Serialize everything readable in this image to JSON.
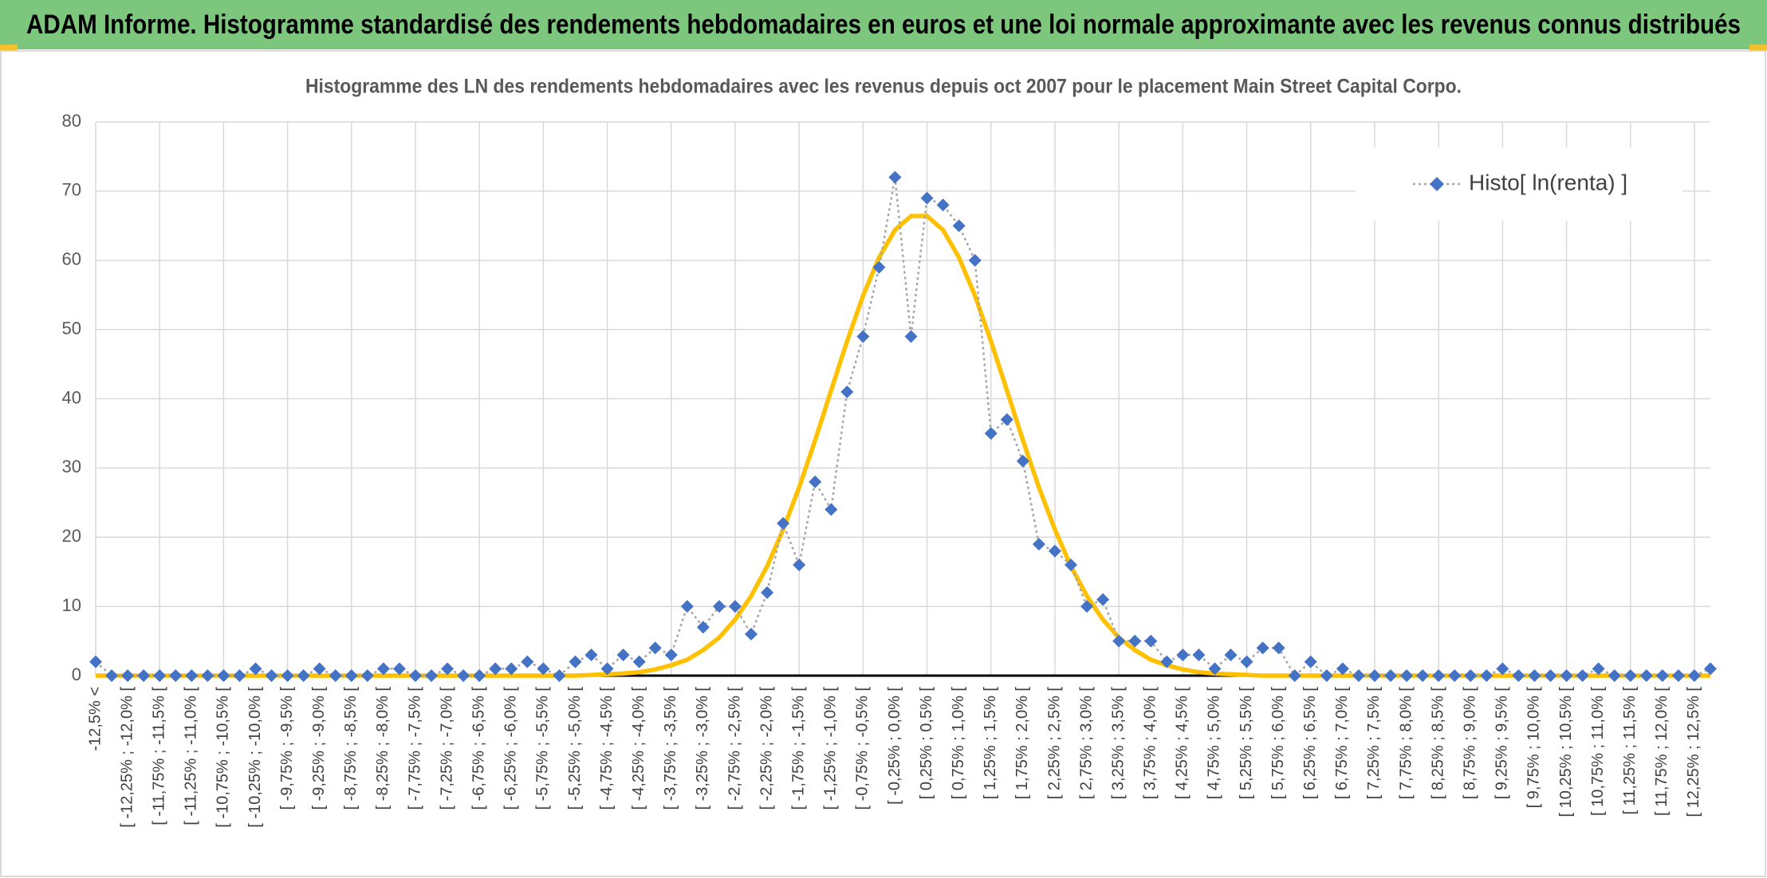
{
  "header": {
    "title": "ADAM Informe. Histogramme standardisé des rendements hebdomadaires en euros et une loi normale approximante avec les revenus connus distribués"
  },
  "chart_data": {
    "type": "line",
    "title": "Histogramme des LN des rendements hebdomadaires avec les revenus depuis oct 2007 pour le placement Main Street Capital Corpo.",
    "categories": [
      "-12,5% <",
      null,
      "[ -12,25% ; -12,0% [",
      null,
      "[ -11,75% ; -11,5% [",
      null,
      "[ -11,25% ; -11,0% [",
      null,
      "[ -10,75% ; -10,5% [",
      null,
      "[ -10,25% ; -10,0% [",
      null,
      "[ -9,75% ; -9,5% [",
      null,
      "[ -9,25% ; -9,0% [",
      null,
      "[ -8,75% ; -8,5% [",
      null,
      "[ -8,25% ; -8,0% [",
      null,
      "[ -7,75% ; -7,5% [",
      null,
      "[ -7,25% ; -7,0% [",
      null,
      "[ -6,75% ; -6,5% [",
      null,
      "[ -6,25% ; -6,0% [",
      null,
      "[ -5,75% ; -5,5% [",
      null,
      "[ -5,25% ; -5,0% [",
      null,
      "[ -4,75% ; -4,5% [",
      null,
      "[ -4,25% ; -4,0% [",
      null,
      "[ -3,75% ; -3,5% [",
      null,
      "[ -3,25% ; -3,0% [",
      null,
      "[ -2,75% ; -2,5% [",
      null,
      "[ -2,25% ; -2,0% [",
      null,
      "[ -1,75% ; -1,5% [",
      null,
      "[ -1,25% ; -1,0% [",
      null,
      "[ -0,75% ; -0,5% [",
      null,
      "[ -0,25% ; 0,0% [",
      null,
      "[ 0,25% ; 0,5% [",
      null,
      "[ 0,75% ; 1,0% [",
      null,
      "[ 1,25% ; 1,5% [",
      null,
      "[ 1,75% ; 2,0% [",
      null,
      "[ 2,25% ; 2,5% [",
      null,
      "[ 2,75% ; 3,0% [",
      null,
      "[ 3,25% ; 3,5% [",
      null,
      "[ 3,75% ; 4,0% [",
      null,
      "[ 4,25% ; 4,5% [",
      null,
      "[ 4,75% ; 5,0% [",
      null,
      "[ 5,25% ; 5,5% [",
      null,
      "[ 5,75% ; 6,0% [",
      null,
      "[ 6,25% ; 6,5% [",
      null,
      "[ 6,75% ; 7,0% [",
      null,
      "[ 7,25% ; 7,5% [",
      null,
      "[ 7,75% ; 8,0% [",
      null,
      "[ 8,25% ; 8,5% [",
      null,
      "[ 8,75% ; 9,0% [",
      null,
      "[ 9,25% ; 9,5% [",
      null,
      "[ 9,75% ; 10,0% [",
      null,
      "[ 10,25% ; 10,5% [",
      null,
      "[ 10,75% ; 11,0% [",
      null,
      "[ 11,25% ; 11,5% [",
      null,
      "[ 11,75% ; 12,0% [",
      null,
      "[ 12,25% ; 12,5% [",
      null
    ],
    "series": [
      {
        "name": "Histo[ ln(renta) ]",
        "color": "#4472c4",
        "line_color": "#a5a5a5",
        "values": [
          2,
          0,
          0,
          0,
          0,
          0,
          0,
          0,
          0,
          0,
          1,
          0,
          0,
          0,
          1,
          0,
          0,
          0,
          1,
          1,
          0,
          0,
          1,
          0,
          0,
          1,
          1,
          2,
          1,
          0,
          2,
          3,
          1,
          3,
          2,
          4,
          3,
          10,
          7,
          10,
          10,
          6,
          12,
          22,
          16,
          28,
          24,
          41,
          49,
          59,
          72,
          49,
          69,
          68,
          65,
          60,
          35,
          37,
          31,
          19,
          18,
          16,
          10,
          11,
          5,
          5,
          5,
          2,
          3,
          3,
          1,
          3,
          2,
          4,
          4,
          0,
          2,
          0,
          1,
          0,
          0,
          0,
          0,
          0,
          0,
          0,
          0,
          0,
          1,
          0,
          0,
          0,
          0,
          0,
          1,
          0,
          0,
          0,
          0,
          0,
          0,
          1
        ]
      },
      {
        "color": "#ffc000",
        "values": [
          0,
          0,
          0,
          0,
          0,
          0,
          0,
          0,
          0,
          0,
          0,
          0,
          0,
          0,
          0,
          0,
          0,
          0,
          0,
          0,
          0,
          0,
          0,
          0,
          0,
          0,
          0,
          0,
          0,
          0,
          0,
          0.1,
          0.2,
          0.3,
          0.5,
          0.9,
          1.5,
          2.3,
          3.7,
          5.5,
          8.1,
          11.5,
          15.8,
          21.1,
          27.2,
          34.0,
          41.2,
          48.3,
          54.9,
          60.4,
          64.4,
          66.4,
          66.4,
          64.4,
          60.4,
          54.9,
          48.3,
          41.2,
          34.0,
          27.2,
          21.1,
          15.8,
          11.5,
          8.1,
          5.5,
          3.7,
          2.3,
          1.5,
          0.9,
          0.5,
          0.3,
          0.2,
          0.1,
          0,
          0,
          0,
          0,
          0,
          0,
          0,
          0,
          0,
          0,
          0,
          0,
          0,
          0,
          0,
          0,
          0,
          0,
          0,
          0,
          0,
          0,
          0,
          0,
          0,
          0,
          0,
          0,
          0
        ]
      }
    ],
    "ylim": [
      0,
      80
    ],
    "yticks": [
      0,
      10,
      20,
      30,
      40,
      50,
      60,
      70,
      80
    ],
    "grid": true,
    "legend": "top-right"
  }
}
